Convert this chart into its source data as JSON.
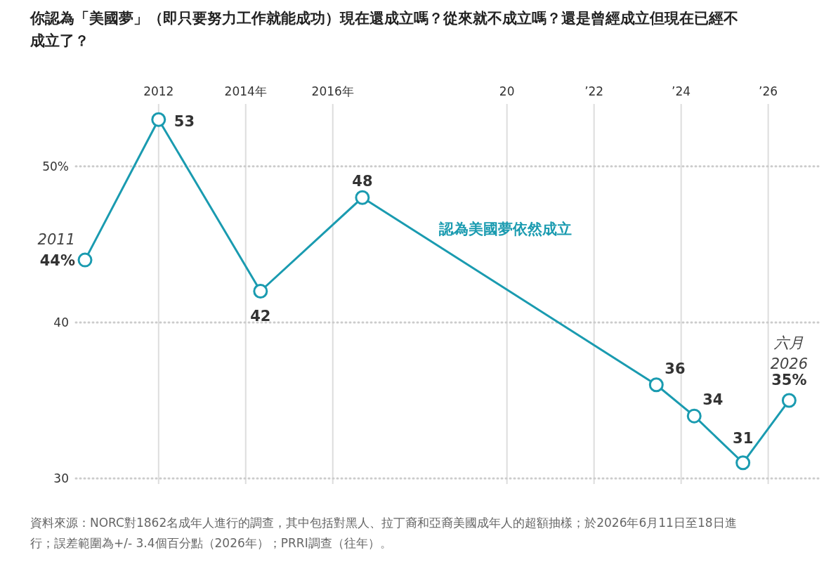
{
  "chart_data": {
    "type": "line",
    "title": "你認為「美國夢」（即只要努力工作就能成功）現在還成立嗎？從來就不成立嗎？還是曾經成立但現在已經不成立了？",
    "x": [
      2010.31,
      2012,
      2014.34,
      2016.68,
      2023.43,
      2024.3,
      2025.42,
      2026.48
    ],
    "series": [
      {
        "name": "認為美國夢依然成立",
        "color": "#1a9bb0",
        "values": [
          44,
          53,
          42,
          48,
          36,
          34,
          31,
          35
        ],
        "value_labels": [
          "44%",
          "53",
          "42",
          "48",
          "36",
          "34",
          "31",
          "35%"
        ]
      }
    ],
    "xlim": [
      2010.1,
      2027.2
    ],
    "xticks": [
      2012,
      {
        "value": 2014,
        "label": "2014年"
      },
      {
        "value": 2016,
        "label": "2016年"
      },
      {
        "value": 2020,
        "label": "20"
      },
      {
        "value": 2022,
        "label": "’22"
      },
      {
        "value": 2024,
        "label": "’24"
      },
      {
        "value": 2026,
        "label": "’26"
      }
    ],
    "ylim": [
      30,
      54
    ],
    "yticks": [
      {
        "value": 50,
        "label": "50%"
      },
      40,
      30
    ],
    "grid": true,
    "marker": "circle",
    "line_style": "solid",
    "legend": false,
    "annotations": [
      {
        "text": "2011",
        "x": 2010.31,
        "y": 44
      },
      {
        "text": "六月 2026",
        "x": 2026.48,
        "y": 35
      },
      "資料來源：NORC對1862名成年人進行的調查，其中包括對黑人、拉丁裔和亞裔美國成年人的超額抽樣；於2026年6月11日至18日進行；誤差範圍為+/- 3.4個百分點（2026年）；PRRI調查（往年）。"
    ]
  }
}
